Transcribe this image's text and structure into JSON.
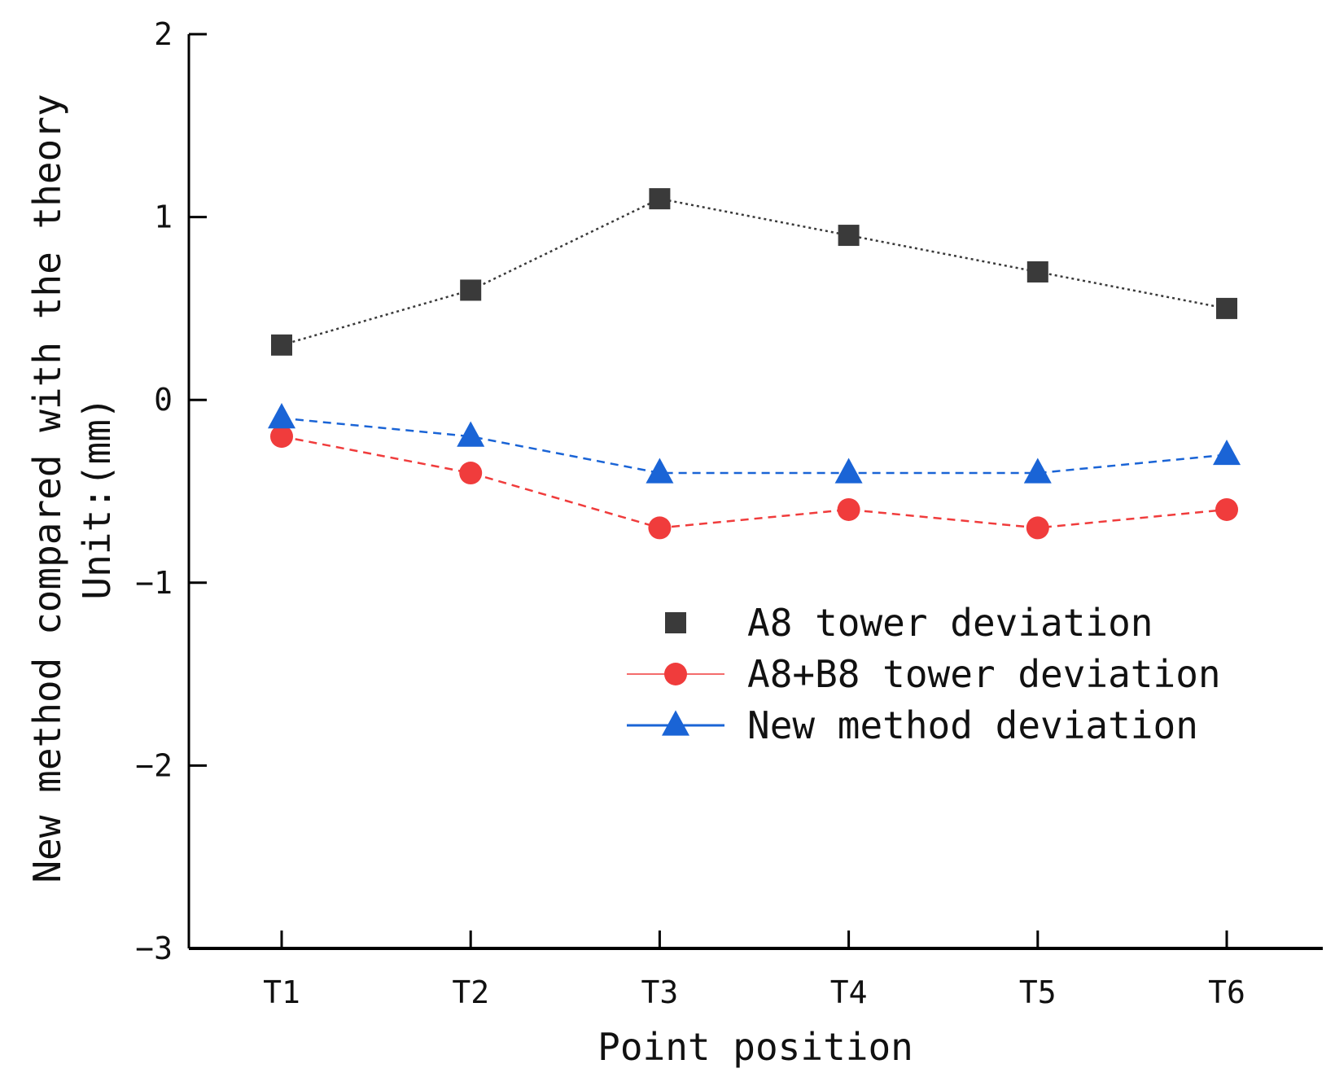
{
  "chart_data": {
    "type": "line",
    "title": "",
    "xlabel": "Point position",
    "ylabel": "New method compared with the theory",
    "ylabel_unit": "Unit:(mm)",
    "categories": [
      "T1",
      "T2",
      "T3",
      "T4",
      "T5",
      "T6"
    ],
    "ylim": [
      -3,
      2
    ],
    "yticks": [
      -3,
      -2,
      -1,
      0,
      1,
      2
    ],
    "ytick_labels": [
      "−3",
      "−2",
      "−1",
      "0",
      "1",
      "2"
    ],
    "grid": false,
    "legend_position": "center-right",
    "series": [
      {
        "name": "A8 tower deviation",
        "marker": "square",
        "line_style": "dotted",
        "color": "#3a3a3a",
        "values": [
          0.3,
          0.6,
          1.1,
          0.9,
          0.7,
          0.5
        ]
      },
      {
        "name": "A8+B8 tower deviation",
        "marker": "circle",
        "line_style": "dashed",
        "color": "#f03c3c",
        "values": [
          -0.2,
          -0.4,
          -0.7,
          -0.6,
          -0.7,
          -0.6
        ]
      },
      {
        "name": "New method deviation",
        "marker": "triangle",
        "line_style": "dashed",
        "color": "#1a64d6",
        "values": [
          -0.1,
          -0.2,
          -0.4,
          -0.4,
          -0.4,
          -0.3
        ]
      }
    ]
  }
}
